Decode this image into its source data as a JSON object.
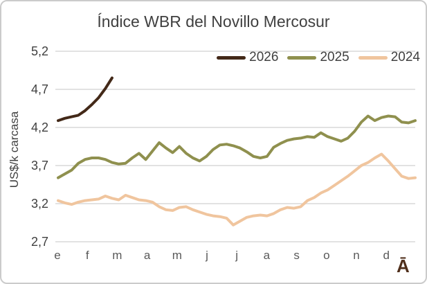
{
  "title": "Índice WBR del Novillo Mercosur",
  "y_axis_title": "US$/k carcasa",
  "watermark": "Ā",
  "chart_data": {
    "type": "line",
    "title": "Índice WBR del Novillo Mercosur",
    "xlabel": "",
    "ylabel": "US$/k carcasa",
    "ylim": [
      2.7,
      5.2
    ],
    "grid": "horizontal",
    "grid_color": "#d9d9d9",
    "legend_position": "top-right",
    "text_color": "#404040",
    "y_ticks": [
      {
        "label": "5,2",
        "value": 5.2
      },
      {
        "label": "4,7",
        "value": 4.7
      },
      {
        "label": "4,2",
        "value": 4.2
      },
      {
        "label": "3,7",
        "value": 3.7
      },
      {
        "label": "3,2",
        "value": 3.2
      },
      {
        "label": "2,7",
        "value": 2.7
      }
    ],
    "x_labels": [
      "e",
      "f",
      "m",
      "a",
      "m",
      "j",
      "j",
      "a",
      "s",
      "o",
      "n",
      "d"
    ],
    "x_unit": "weeks",
    "series": [
      {
        "name": "2026",
        "color": "#432918",
        "values": [
          4.29,
          4.32,
          4.34,
          4.36,
          4.42,
          4.5,
          4.59,
          4.71,
          4.85
        ]
      },
      {
        "name": "2025",
        "color": "#8f904e",
        "values": [
          3.54,
          3.59,
          3.64,
          3.73,
          3.78,
          3.8,
          3.8,
          3.78,
          3.74,
          3.72,
          3.73,
          3.8,
          3.86,
          3.78,
          3.89,
          4.0,
          3.93,
          3.87,
          3.95,
          3.86,
          3.8,
          3.76,
          3.82,
          3.91,
          3.97,
          3.98,
          3.96,
          3.93,
          3.88,
          3.82,
          3.8,
          3.82,
          3.94,
          3.99,
          4.03,
          4.05,
          4.06,
          4.08,
          4.07,
          4.13,
          4.08,
          4.05,
          4.02,
          4.06,
          4.15,
          4.27,
          4.35,
          4.29,
          4.33,
          4.35,
          4.34,
          4.27,
          4.26,
          4.29
        ]
      },
      {
        "name": "2024",
        "color": "#f0c59e",
        "values": [
          3.24,
          3.21,
          3.19,
          3.22,
          3.24,
          3.25,
          3.26,
          3.3,
          3.27,
          3.25,
          3.31,
          3.28,
          3.25,
          3.24,
          3.22,
          3.16,
          3.12,
          3.11,
          3.15,
          3.16,
          3.12,
          3.09,
          3.06,
          3.04,
          3.03,
          3.01,
          2.92,
          2.97,
          3.02,
          3.04,
          3.05,
          3.04,
          3.07,
          3.12,
          3.15,
          3.14,
          3.16,
          3.24,
          3.28,
          3.34,
          3.38,
          3.44,
          3.5,
          3.56,
          3.63,
          3.7,
          3.74,
          3.8,
          3.85,
          3.76,
          3.66,
          3.56,
          3.53,
          3.54
        ]
      }
    ]
  }
}
